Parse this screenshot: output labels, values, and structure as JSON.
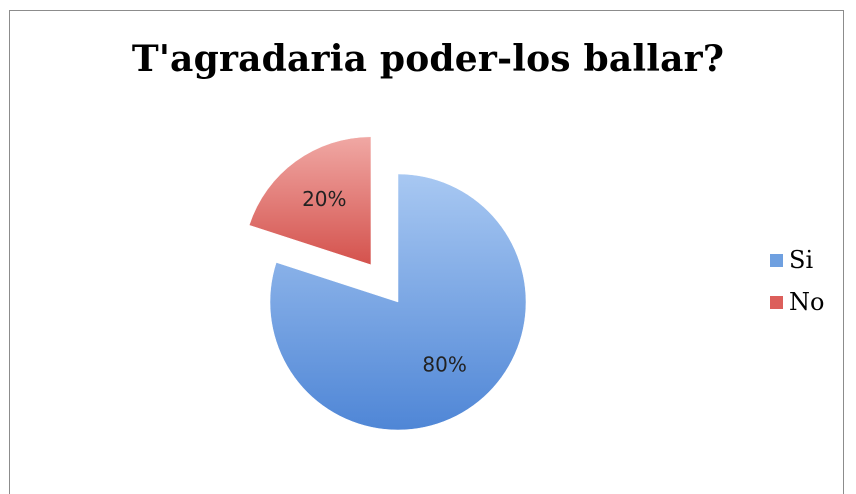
{
  "chart_data": {
    "type": "pie",
    "title": "T'agradaria poder-los ballar?",
    "categories": [
      "Si",
      "No"
    ],
    "values": [
      80,
      20
    ],
    "labels": [
      "80%",
      "20%"
    ],
    "colors": [
      "#6fa0e0",
      "#dc5f5b"
    ],
    "exploded": [
      false,
      true
    ],
    "legend": "right"
  }
}
